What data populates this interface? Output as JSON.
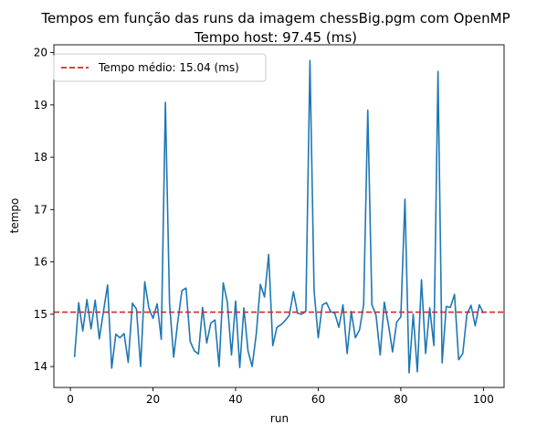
{
  "chart_data": {
    "type": "line",
    "title": "Tempos em função das runs da imagem chessBig.pgm com OpenMP",
    "subtitle": "Tempo host: 97.45 (ms)",
    "xlabel": "run",
    "ylabel": "tempo",
    "xlim": [
      -4,
      105
    ],
    "ylim": [
      13.6,
      20.15
    ],
    "xticks": [
      0,
      20,
      40,
      60,
      80,
      100
    ],
    "yticks": [
      14,
      15,
      16,
      17,
      18,
      19,
      20
    ],
    "grid": false,
    "legend_position": "top-left",
    "series": [
      {
        "color": "#1f77b4",
        "x": [
          1,
          2,
          3,
          4,
          5,
          6,
          7,
          8,
          9,
          10,
          11,
          12,
          13,
          14,
          15,
          16,
          17,
          18,
          19,
          20,
          21,
          22,
          23,
          24,
          25,
          26,
          27,
          28,
          29,
          30,
          31,
          32,
          33,
          34,
          35,
          36,
          37,
          38,
          39,
          40,
          41,
          42,
          43,
          44,
          45,
          46,
          47,
          48,
          49,
          50,
          51,
          52,
          53,
          54,
          55,
          56,
          57,
          58,
          59,
          60,
          61,
          62,
          63,
          64,
          65,
          66,
          67,
          68,
          69,
          70,
          71,
          72,
          73,
          74,
          75,
          76,
          77,
          78,
          79,
          80,
          81,
          82,
          83,
          84,
          85,
          86,
          87,
          88,
          89,
          90,
          91,
          92,
          93,
          94,
          95,
          96,
          97,
          98,
          99,
          100
        ],
        "values": [
          14.18,
          15.22,
          14.68,
          15.28,
          14.72,
          15.27,
          14.53,
          15.05,
          15.56,
          13.97,
          14.62,
          14.55,
          14.63,
          14.08,
          15.21,
          15.1,
          14.0,
          15.62,
          15.12,
          14.92,
          15.2,
          14.52,
          19.05,
          15.21,
          14.18,
          14.86,
          15.45,
          15.5,
          14.48,
          14.3,
          14.24,
          15.13,
          14.45,
          14.83,
          14.89,
          14.0,
          15.6,
          15.23,
          14.22,
          15.25,
          13.98,
          15.12,
          14.3,
          14.0,
          14.62,
          15.57,
          15.33,
          16.14,
          14.4,
          14.75,
          14.8,
          14.88,
          14.98,
          15.43,
          15.02,
          15.0,
          15.06,
          19.85,
          15.45,
          14.55,
          15.18,
          15.22,
          15.05,
          15.02,
          14.75,
          15.18,
          14.25,
          15.05,
          14.55,
          14.7,
          15.18,
          18.9,
          15.18,
          14.98,
          14.22,
          15.23,
          14.8,
          14.28,
          14.85,
          14.95,
          17.2,
          13.88,
          15.0,
          13.9,
          15.66,
          14.25,
          15.12,
          14.4,
          19.64,
          14.07,
          15.15,
          15.13,
          15.38,
          14.13,
          14.25,
          15.0,
          15.17,
          14.78,
          15.18,
          15.02
        ]
      }
    ],
    "reference_line": {
      "label": "Tempo médio: 15.04 (ms)",
      "value": 15.04,
      "color": "#d62728",
      "style": "dashed"
    }
  }
}
